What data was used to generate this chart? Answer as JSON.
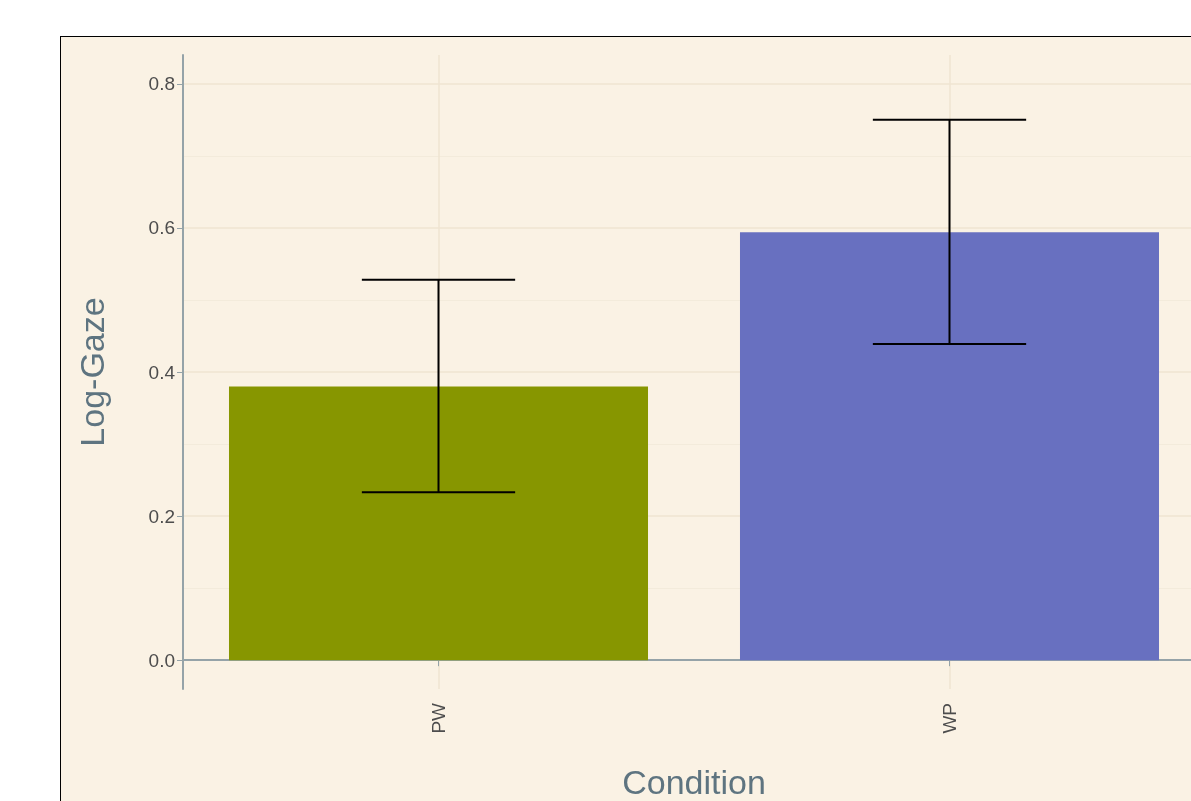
{
  "chart_data": {
    "type": "bar",
    "xlabel": "Condition",
    "ylabel": "Log-Gaze",
    "categories": [
      "PW",
      "WP"
    ],
    "values": [
      0.38,
      0.594
    ],
    "colors": [
      "#879600",
      "#6870c0"
    ],
    "errors": [
      [
        0.233,
        0.528
      ],
      [
        0.439,
        0.75
      ]
    ],
    "ylim": [
      -0.04,
      0.84
    ],
    "yticks": [
      {
        "value": 0,
        "label": "0.0"
      },
      0.2,
      0.4,
      0.6,
      0.8
    ],
    "grid": true
  }
}
